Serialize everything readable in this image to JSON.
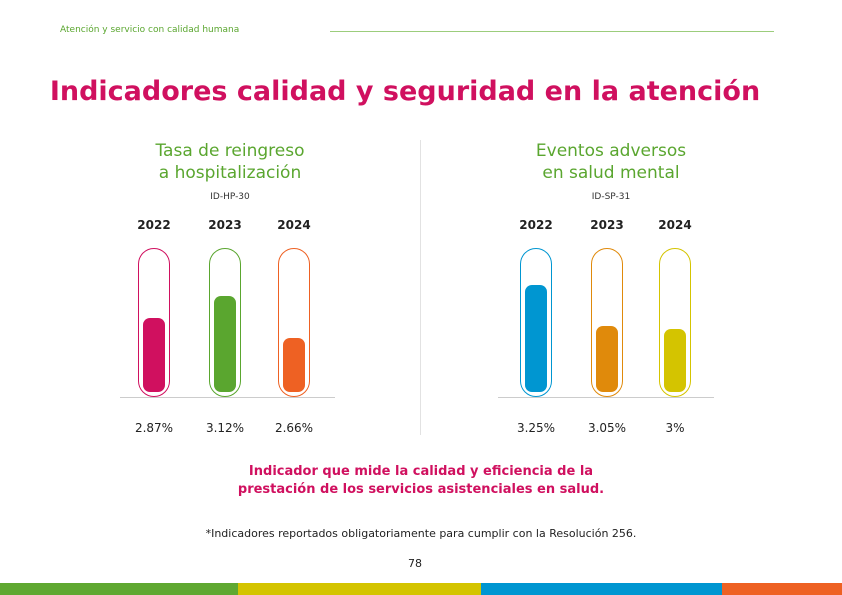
{
  "header": "Atención y servicio con calidad humana",
  "title": "Indicadores calidad y seguridad en la atención",
  "chart_data": [
    {
      "type": "bar",
      "title": "Tasa de reingreso a hospitalización",
      "title_lines": [
        "Tasa de reingreso",
        "a hospitalización"
      ],
      "id": "ID-HP-30",
      "categories": [
        "2022",
        "2023",
        "2024"
      ],
      "values": [
        2.87,
        3.12,
        2.66
      ],
      "labels": [
        "2.87%",
        "3.12%",
        "2.66%"
      ],
      "fill_fraction": [
        0.5,
        0.65,
        0.37
      ],
      "colors": [
        "#d0105f",
        "#5aa62f",
        "#ee6123"
      ]
    },
    {
      "type": "bar",
      "title": "Eventos adversos en salud mental",
      "title_lines": [
        "Eventos adversos",
        "en salud mental"
      ],
      "id": "ID-SP-31",
      "categories": [
        "2022",
        "2023",
        "2024"
      ],
      "values": [
        3.25,
        3.05,
        3
      ],
      "labels": [
        "3.25%",
        "3.05%",
        "3%"
      ],
      "fill_fraction": [
        0.73,
        0.45,
        0.43
      ],
      "colors": [
        "#0096d1",
        "#e08a0b",
        "#d4c400"
      ]
    }
  ],
  "note_lines": [
    "Indicador que mide la calidad y eficiencia de la",
    "prestación de los servicios asistenciales en salud."
  ],
  "footnote": "*Indicadores reportados obligatoriamente para cumplir con la Resolución 256.",
  "page_number": "78",
  "stripe_colors": [
    "#5fa831",
    "#d4c400",
    "#0096d1",
    "#ee6123"
  ]
}
